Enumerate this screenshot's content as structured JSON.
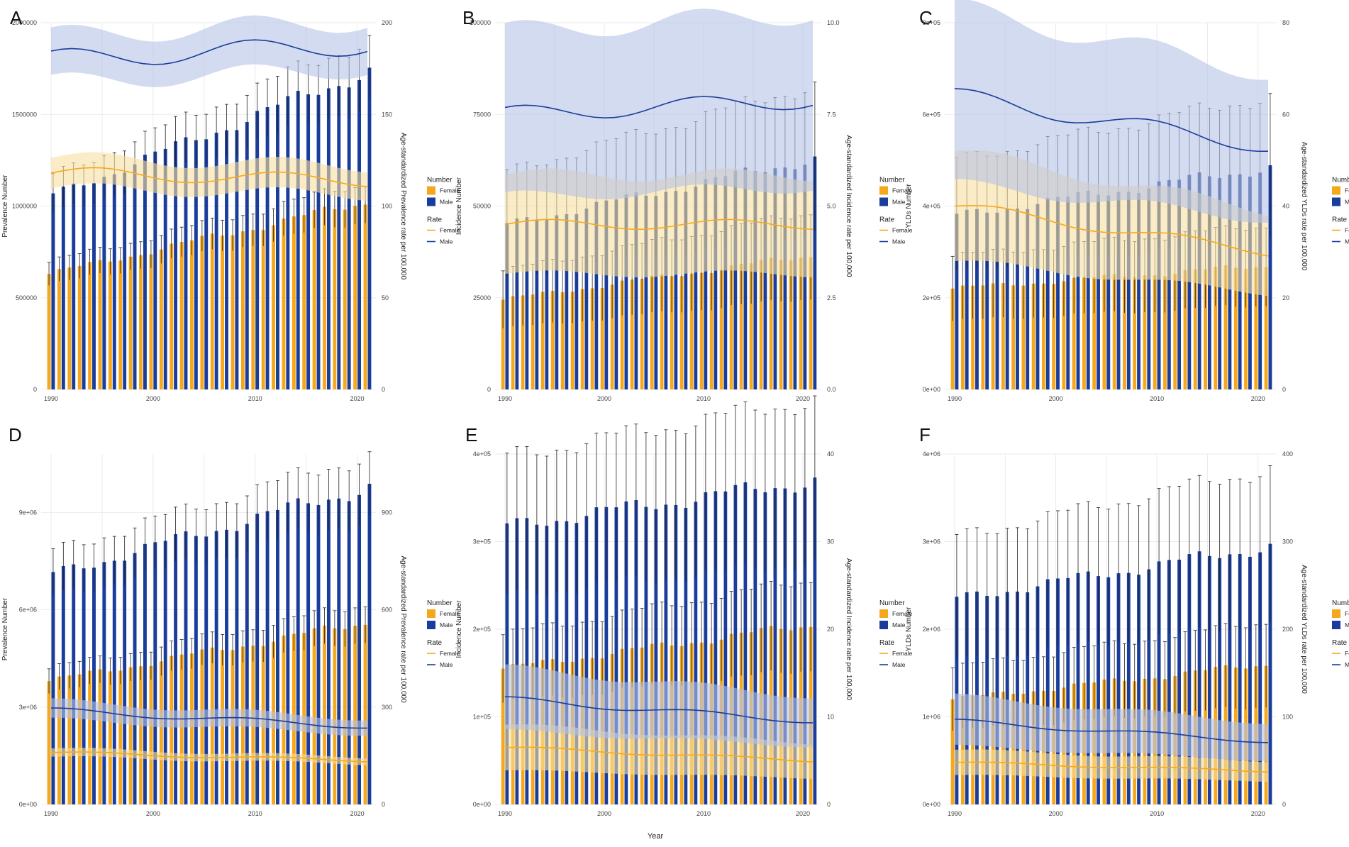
{
  "colors": {
    "female": "#F5A81C",
    "male": "#1A3D9B",
    "female_band": "#F6DFA0",
    "male_band": "#B5C3E6",
    "grid": "#EBEBEB"
  },
  "legend": {
    "number_title": "Number",
    "rate_title": "Rate",
    "female": "Female",
    "male": "Male"
  },
  "x_axis_title": "Year",
  "chart_data": [
    {
      "panel": "A",
      "type": "bar",
      "ylabel": "Prevalence Number",
      "ylabel2": "Age-standardized Prevalence rate per 100,000",
      "ylim": [
        0,
        2000000
      ],
      "ylim2": [
        0,
        200
      ],
      "y_ticks": [
        "0",
        "500000",
        "1000000",
        "1500000",
        "2000000"
      ],
      "y2_ticks": [
        "0",
        "50",
        "100",
        "150",
        "200"
      ],
      "x_ticks": [
        "1990",
        "2000",
        "2010",
        "2020"
      ],
      "years": [
        1990,
        2021
      ],
      "series": [
        {
          "name": "Female",
          "start": 630000,
          "end": 1020000,
          "err": 0.1
        },
        {
          "name": "Male",
          "start": 1060000,
          "end": 1740000,
          "err": 0.1
        }
      ],
      "rate_series": [
        {
          "name": "Female",
          "start": 118,
          "end": 114,
          "band": 0.07
        },
        {
          "name": "Male",
          "start": 180,
          "end": 188,
          "band": 0.07
        }
      ]
    },
    {
      "panel": "B",
      "type": "bar",
      "ylabel": "Incidence Number",
      "ylabel2": "Age-standardized Incidence rate per 100,000",
      "ylim": [
        0,
        100000
      ],
      "ylim2": [
        0,
        10
      ],
      "y_ticks": [
        "0",
        "25000",
        "50000",
        "75000",
        "100000"
      ],
      "y2_ticks": [
        "0.0",
        "2.5",
        "5.0",
        "7.5",
        "10.0"
      ],
      "x_ticks": [
        "1990",
        "2000",
        "2010",
        "2020"
      ],
      "years": [
        1990,
        2021
      ],
      "series": [
        {
          "name": "Female",
          "start": 24500,
          "end": 36500,
          "err": 0.32
        },
        {
          "name": "Male",
          "start": 45000,
          "end": 63000,
          "err": 0.32
        }
      ],
      "rate_series": [
        {
          "name": "Female",
          "start": 4.5,
          "end": 4.5,
          "band": 0.3
        },
        {
          "name": "Male",
          "start": 7.5,
          "end": 7.9,
          "band": 0.3
        }
      ]
    },
    {
      "panel": "C",
      "type": "bar",
      "ylabel": "YLDs Number",
      "ylabel2": "Age-standardized YLDs rate per 100,000",
      "ylim": [
        0,
        800000
      ],
      "ylim2": [
        0,
        80
      ],
      "y_ticks": [
        "0e+00",
        "2e+05",
        "4e+05",
        "6e+05",
        "8e+05"
      ],
      "y2_ticks": [
        "0",
        "20",
        "40",
        "60",
        "80"
      ],
      "x_ticks": [
        "1990",
        "2000",
        "2010",
        "2020"
      ],
      "years": [
        1990,
        2021
      ],
      "series": [
        {
          "name": "Female",
          "start": 220000,
          "end": 270000,
          "err": 0.32
        },
        {
          "name": "Male",
          "start": 380000,
          "end": 485000,
          "err": 0.32
        }
      ],
      "rate_series": [
        {
          "name": "Female",
          "start": 40,
          "end": 30,
          "band": 0.3
        },
        {
          "name": "Male",
          "start": 64,
          "end": 53,
          "band": 0.3
        }
      ]
    },
    {
      "panel": "D",
      "type": "bar",
      "ylabel": "Prevalence Number",
      "ylabel2": "Age-standardized Prevalence rate per 100,000",
      "ylim": [
        0,
        10800000
      ],
      "ylim2": [
        0,
        1080
      ],
      "y_ticks": [
        "0e+00",
        "3e+06",
        "6e+06",
        "9e+06"
      ],
      "y2_ticks": [
        "0",
        "300",
        "600",
        "900"
      ],
      "x_ticks": [
        "1990",
        "2000",
        "2010",
        "2020"
      ],
      "years": [
        1990,
        2021
      ],
      "series": [
        {
          "name": "Female",
          "start": 3800000,
          "end": 5600000,
          "err": 0.1
        },
        {
          "name": "Male",
          "start": 7100000,
          "end": 9800000,
          "err": 0.1
        }
      ],
      "rate_series": [
        {
          "name": "Female",
          "start": 160,
          "end": 135,
          "band": 0.08
        },
        {
          "name": "Male",
          "start": 290,
          "end": 240,
          "band": 0.1
        }
      ]
    },
    {
      "panel": "E",
      "type": "bar",
      "ylabel": "Incidence Number",
      "ylabel2": "Age-standardized Incidence rate per 100,000",
      "ylim": [
        0,
        400000
      ],
      "ylim2": [
        0,
        40
      ],
      "y_ticks": [
        "0e+00",
        "1e+05",
        "2e+05",
        "3e+05",
        "4e+05"
      ],
      "y2_ticks": [
        "0",
        "10",
        "20",
        "30",
        "40"
      ],
      "x_ticks": [
        "1990",
        "2000",
        "2010",
        "2020"
      ],
      "years": [
        1990,
        2021
      ],
      "series": [
        {
          "name": "Female",
          "start": 155000,
          "end": 205000,
          "err": 0.25
        },
        {
          "name": "Male",
          "start": 318000,
          "end": 370000,
          "err": 0.25
        }
      ],
      "rate_series": [
        {
          "name": "Female",
          "start": 6.5,
          "end": 5,
          "band": 0.4
        },
        {
          "name": "Male",
          "start": 12,
          "end": 9.5,
          "band": 0.3
        }
      ]
    },
    {
      "panel": "F",
      "type": "bar",
      "ylabel": "YLDs Number",
      "ylabel2": "Age-standardized YLDs rate per 100,000",
      "ylim": [
        0,
        4000000
      ],
      "ylim2": [
        0,
        400
      ],
      "y_ticks": [
        "0e+00",
        "1e+06",
        "2e+06",
        "3e+06",
        "4e+06"
      ],
      "y2_ticks": [
        "0",
        "100",
        "200",
        "300",
        "400"
      ],
      "x_ticks": [
        "1990",
        "2000",
        "2010",
        "2020"
      ],
      "years": [
        1990,
        2021
      ],
      "series": [
        {
          "name": "Female",
          "start": 1200000,
          "end": 1600000,
          "err": 0.3
        },
        {
          "name": "Male",
          "start": 2350000,
          "end": 2950000,
          "err": 0.3
        }
      ],
      "rate_series": [
        {
          "name": "Female",
          "start": 48,
          "end": 38,
          "band": 0.3
        },
        {
          "name": "Male",
          "start": 95,
          "end": 72,
          "band": 0.3
        }
      ]
    }
  ]
}
